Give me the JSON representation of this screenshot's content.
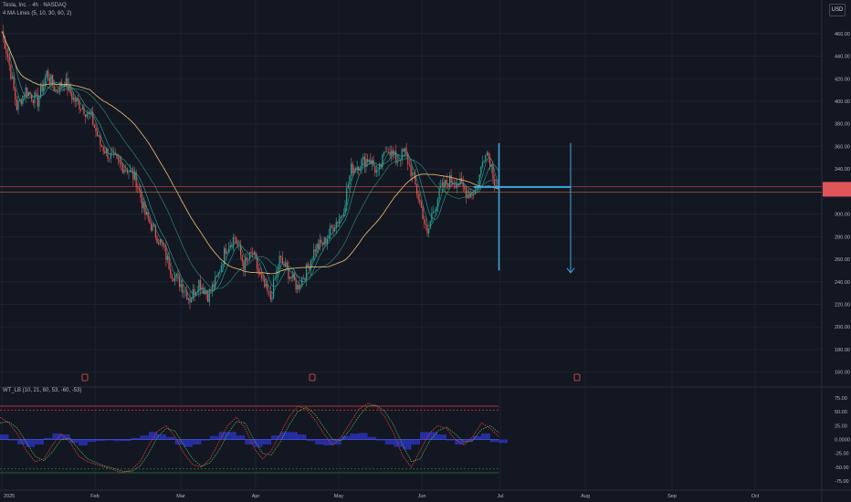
{
  "header": {
    "title": "Tesla, Inc. · 4h · NASDAQ",
    "ma_legend": "4 MA Lines (5, 10, 30, 60, 2)",
    "currency": "USD"
  },
  "indicator": {
    "legend": "WT_LB (10, 21, 60, 53, -60, -53)"
  },
  "colors": {
    "background": "#131722",
    "grid": "#1e222d",
    "up": "#26a69a",
    "down": "#ef5350",
    "ma_fast": "#26a69a",
    "ma_mid": "#2e7d6b",
    "ma_slow": "#f0c070",
    "tool_blue": "#3fa6e0",
    "price_badge": "#e0555a",
    "wt1": "#e23a3a",
    "wt2": "#4cae4c",
    "histogram": "#2d35c8",
    "level_red": "#e23a3a",
    "level_green": "#2a7a3a"
  },
  "chart_data": [
    {
      "type": "candlestick",
      "x_axis": [
        "2025",
        "Feb",
        "Mar",
        "Apr",
        "May",
        "Jun",
        "Jul",
        "Aug",
        "Sep",
        "Oct"
      ],
      "y_ticks": [
        460,
        440,
        420,
        400,
        380,
        360,
        340,
        300,
        280,
        260,
        240,
        220,
        200,
        180,
        160
      ],
      "ylim": [
        150,
        472
      ],
      "close_anchors": [
        [
          0,
          462
        ],
        [
          4,
          440
        ],
        [
          10,
          395
        ],
        [
          16,
          410
        ],
        [
          24,
          400
        ],
        [
          30,
          425
        ],
        [
          36,
          410
        ],
        [
          42,
          418
        ],
        [
          48,
          402
        ],
        [
          54,
          395
        ],
        [
          60,
          385
        ],
        [
          66,
          362
        ],
        [
          72,
          352
        ],
        [
          78,
          345
        ],
        [
          84,
          340
        ],
        [
          90,
          330
        ],
        [
          96,
          300
        ],
        [
          102,
          285
        ],
        [
          108,
          270
        ],
        [
          114,
          248
        ],
        [
          120,
          238
        ],
        [
          126,
          225
        ],
        [
          132,
          240
        ],
        [
          138,
          228
        ],
        [
          144,
          242
        ],
        [
          150,
          270
        ],
        [
          156,
          280
        ],
        [
          162,
          255
        ],
        [
          168,
          265
        ],
        [
          174,
          240
        ],
        [
          180,
          225
        ],
        [
          186,
          260
        ],
        [
          192,
          248
        ],
        [
          198,
          235
        ],
        [
          204,
          250
        ],
        [
          210,
          270
        ],
        [
          216,
          275
        ],
        [
          222,
          290
        ],
        [
          228,
          300
        ],
        [
          234,
          340
        ],
        [
          240,
          345
        ],
        [
          246,
          350
        ],
        [
          252,
          335
        ],
        [
          258,
          360
        ],
        [
          264,
          348
        ],
        [
          270,
          355
        ],
        [
          276,
          330
        ],
        [
          282,
          300
        ],
        [
          285,
          280
        ],
        [
          288,
          300
        ],
        [
          294,
          322
        ],
        [
          300,
          330
        ],
        [
          306,
          328
        ],
        [
          312,
          318
        ],
        [
          318,
          322
        ],
        [
          324,
          358
        ],
        [
          327,
          348
        ],
        [
          330,
          330
        ],
        [
          333,
          323
        ]
      ],
      "candles": 333,
      "x_range": [
        0,
        333
      ],
      "annotations": {
        "horizontal_line_price": 324,
        "vertical_line_x": 333,
        "vertical_line_range": [
          250,
          363
        ],
        "arrow_x": 381,
        "arrow_from": 363,
        "arrow_to": 248,
        "highlight_price": 322
      }
    },
    {
      "type": "line",
      "title": "WT_LB (10, 21, 60, 53, -60, -53)",
      "y_ticks": [
        75,
        50,
        25,
        0,
        -25,
        -50,
        -75
      ],
      "y_tick_labels": [
        "75.00",
        "50.00",
        "25.00",
        "0.0000",
        "-25.00",
        "-50.00",
        "-75.00"
      ],
      "ylim": [
        -88,
        88
      ],
      "levels": {
        "overbought": [
          60,
          53
        ],
        "oversold": [
          -60,
          -53
        ]
      },
      "series": [
        {
          "values": [
            40,
            30,
            10,
            -20,
            -40,
            -35,
            -10,
            10,
            -5,
            -30,
            -40,
            -45,
            -50,
            -55,
            -60,
            -55,
            -40,
            -10,
            15,
            25,
            5,
            -25,
            -45,
            -50,
            -35,
            -5,
            25,
            40,
            20,
            -15,
            -35,
            -20,
            10,
            40,
            60,
            55,
            35,
            10,
            -10,
            5,
            30,
            55,
            65,
            60,
            40,
            10,
            -30,
            -50,
            -20,
            10,
            25,
            20,
            0,
            -10,
            5,
            30,
            20,
            5
          ]
        },
        {
          "values": [
            30,
            32,
            20,
            -5,
            -30,
            -38,
            -22,
            0,
            2,
            -18,
            -35,
            -42,
            -48,
            -52,
            -57,
            -58,
            -48,
            -25,
            5,
            20,
            15,
            -10,
            -35,
            -48,
            -42,
            -20,
            10,
            32,
            30,
            0,
            -25,
            -28,
            -5,
            25,
            50,
            58,
            45,
            22,
            0,
            -2,
            18,
            42,
            60,
            62,
            50,
            25,
            -10,
            -40,
            -35,
            -5,
            15,
            22,
            10,
            -5,
            -2,
            18,
            25,
            12
          ]
        }
      ]
    }
  ]
}
